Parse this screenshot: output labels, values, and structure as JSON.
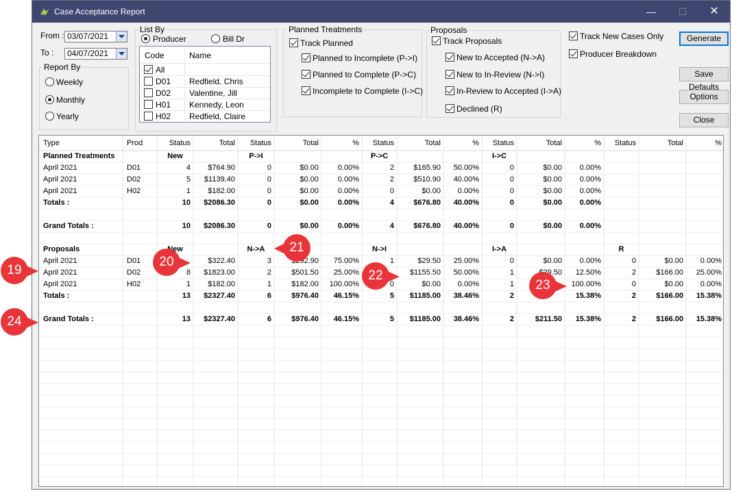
{
  "window": {
    "title": "Case Acceptance Report"
  },
  "dates": {
    "from_label": "From :",
    "from_value": "03/07/2021",
    "to_label": "To :",
    "to_value": "04/07/2021"
  },
  "report_by": {
    "title": "Report By",
    "options": [
      {
        "label": "Weekly",
        "selected": false
      },
      {
        "label": "Monthly",
        "selected": true
      },
      {
        "label": "Yearly",
        "selected": false
      }
    ]
  },
  "list_by": {
    "title": "List By",
    "producer_label": "Producer",
    "producer_selected": true,
    "billdr_label": "Bill Dr",
    "billdr_selected": false,
    "col_code": "Code",
    "col_name": "Name",
    "rows": [
      {
        "code": "All",
        "name": "",
        "checked": true
      },
      {
        "code": "D01",
        "name": "Redfield, Chris",
        "checked": false
      },
      {
        "code": "D02",
        "name": "Valentine, Jill",
        "checked": false
      },
      {
        "code": "H01",
        "name": "Kennedy, Leon",
        "checked": false
      },
      {
        "code": "H02",
        "name": "Redfield, Claire",
        "checked": false
      }
    ]
  },
  "planned": {
    "title": "Planned Treatments",
    "track_label": "Track Planned",
    "track_checked": true,
    "items": [
      {
        "label": "Planned to Incomplete (P->I)",
        "checked": true
      },
      {
        "label": "Planned to Complete (P->C)",
        "checked": true
      },
      {
        "label": "Incomplete to Complete (I->C)",
        "checked": true
      }
    ]
  },
  "proposals": {
    "title": "Proposals",
    "track_label": "Track Proposals",
    "track_checked": true,
    "items": [
      {
        "label": "New to Accepted (N->A)",
        "checked": true
      },
      {
        "label": "New to In-Review (N->I)",
        "checked": true
      },
      {
        "label": "In-Review to Accepted (I->A)",
        "checked": true
      },
      {
        "label": "Declined (R)",
        "checked": true
      }
    ]
  },
  "options": {
    "track_new_label": "Track New Cases Only",
    "track_new_checked": true,
    "producer_breakdown_label": "Producer Breakdown",
    "producer_breakdown_checked": true
  },
  "buttons": {
    "generate": "Generate",
    "save_defaults": "Save Defaults",
    "options": "Options",
    "close": "Close"
  },
  "grid": {
    "headers": [
      "Type",
      "Prod",
      "Status",
      "Total",
      "Status",
      "Total",
      "%",
      "Status",
      "Total",
      "%",
      "Status",
      "Total",
      "%",
      "Status",
      "Total",
      "%"
    ],
    "rows": [
      {
        "bold": true,
        "cells": [
          "Planned Treatments",
          "",
          "New",
          "",
          "P->I",
          "",
          "",
          "P->C",
          "",
          "",
          "I->C",
          "",
          "",
          "",
          "",
          ""
        ]
      },
      {
        "bold": false,
        "cells": [
          "April 2021",
          "D01",
          "4",
          "$764.90",
          "0",
          "$0.00",
          "0.00%",
          "2",
          "$165.90",
          "50.00%",
          "0",
          "$0.00",
          "0.00%",
          "",
          "",
          ""
        ]
      },
      {
        "bold": false,
        "cells": [
          "April 2021",
          "D02",
          "5",
          "$1139.40",
          "0",
          "$0.00",
          "0.00%",
          "2",
          "$510.90",
          "40.00%",
          "0",
          "$0.00",
          "0.00%",
          "",
          "",
          ""
        ]
      },
      {
        "bold": false,
        "cells": [
          "April 2021",
          "H02",
          "1",
          "$182.00",
          "0",
          "$0.00",
          "0.00%",
          "0",
          "$0.00",
          "0.00%",
          "0",
          "$0.00",
          "0.00%",
          "",
          "",
          ""
        ]
      },
      {
        "bold": true,
        "cells": [
          "Totals :",
          "",
          "10",
          "$2086.30",
          "0",
          "$0.00",
          "0.00%",
          "4",
          "$676.80",
          "40.00%",
          "0",
          "$0.00",
          "0.00%",
          "",
          "",
          ""
        ]
      },
      {
        "bold": false,
        "cells": [
          "",
          "",
          "",
          "",
          "",
          "",
          "",
          "",
          "",
          "",
          "",
          "",
          "",
          "",
          "",
          ""
        ]
      },
      {
        "bold": true,
        "cells": [
          "Grand Totals :",
          "",
          "10",
          "$2086.30",
          "0",
          "$0.00",
          "0.00%",
          "4",
          "$676.80",
          "40.00%",
          "0",
          "$0.00",
          "0.00%",
          "",
          "",
          ""
        ]
      },
      {
        "bold": false,
        "cells": [
          "",
          "",
          "",
          "",
          "",
          "",
          "",
          "",
          "",
          "",
          "",
          "",
          "",
          "",
          "",
          ""
        ]
      },
      {
        "bold": true,
        "cells": [
          "Proposals",
          "",
          "New",
          "",
          "N->A",
          "",
          "",
          "N->I",
          "",
          "",
          "I->A",
          "",
          "",
          "R",
          "",
          ""
        ]
      },
      {
        "bold": false,
        "cells": [
          "April 2021",
          "D01",
          "",
          "$322.40",
          "3",
          "$292.90",
          "75.00%",
          "1",
          "$29.50",
          "25.00%",
          "0",
          "$0.00",
          "0.00%",
          "0",
          "$0.00",
          "0.00%"
        ]
      },
      {
        "bold": false,
        "cells": [
          "April 2021",
          "D02",
          "8",
          "$1823.00",
          "2",
          "$501.50",
          "25.00%",
          "",
          "$1155.50",
          "50.00%",
          "1",
          "$29.50",
          "12.50%",
          "2",
          "$166.00",
          "25.00%"
        ]
      },
      {
        "bold": false,
        "cells": [
          "April 2021",
          "H02",
          "1",
          "$182.00",
          "1",
          "$182.00",
          "100.00%",
          "0",
          "$0.00",
          "0.00%",
          "1",
          "",
          "100.00%",
          "0",
          "$0.00",
          "0.00%"
        ]
      },
      {
        "bold": true,
        "cells": [
          "Totals :",
          "",
          "13",
          "$2327.40",
          "6",
          "$976.40",
          "46.15%",
          "5",
          "$1185.00",
          "38.46%",
          "2",
          "",
          "15.38%",
          "2",
          "$166.00",
          "15.38%"
        ]
      },
      {
        "bold": false,
        "cells": [
          "",
          "",
          "",
          "",
          "",
          "",
          "",
          "",
          "",
          "",
          "",
          "",
          "",
          "",
          "",
          ""
        ]
      },
      {
        "bold": true,
        "cells": [
          "Grand Totals :",
          "",
          "13",
          "$2327.40",
          "6",
          "$976.40",
          "46.15%",
          "5",
          "$1185.00",
          "38.46%",
          "2",
          "$211.50",
          "15.38%",
          "2",
          "$166.00",
          "15.38%"
        ]
      }
    ]
  },
  "callouts": [
    "19",
    "20",
    "21",
    "22",
    "23",
    "24"
  ],
  "colors": {
    "titlebar": "#3f4670",
    "callout": "#e8353a",
    "accent": "#0078d7"
  }
}
